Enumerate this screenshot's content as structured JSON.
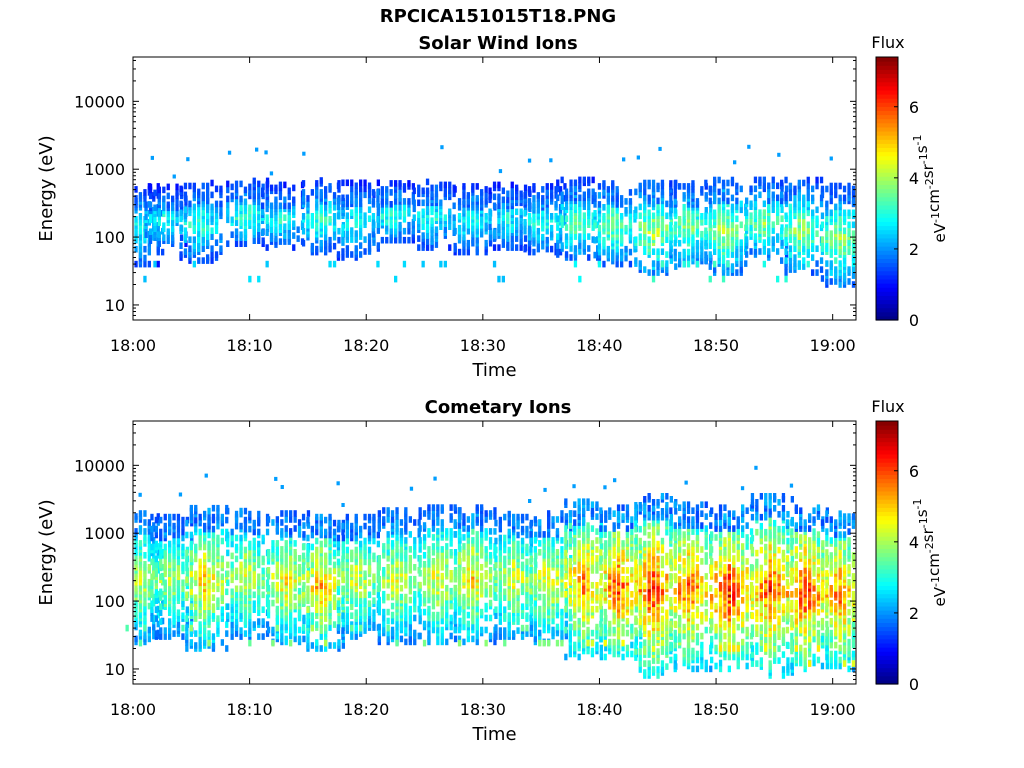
{
  "figure": {
    "supertitle": "RPCICA151015T18.PNG"
  },
  "chart_data": [
    {
      "type": "heatmap",
      "title": "Solar Wind Ions",
      "xlabel": "Time",
      "ylabel": "Energy (eV)",
      "x_ticks": [
        "18:00",
        "18:10",
        "18:20",
        "18:30",
        "18:40",
        "18:50",
        "19:00"
      ],
      "xlim": [
        "18:00",
        "19:02"
      ],
      "y_scale": "log",
      "y_ticks": [
        "10",
        "100",
        "1000",
        "10000"
      ],
      "ylim": [
        6,
        45000
      ],
      "colorbar": {
        "label": "Flux",
        "unit": "eV-1cm-2sr-1s-1",
        "ticks": [
          "0",
          "2",
          "4",
          "6"
        ],
        "range": [
          0,
          7.4
        ],
        "colormap": "jet"
      },
      "bursts": [
        {
          "t": "18:00.5",
          "lo": 40,
          "hi": 600,
          "peak": 3.3
        },
        {
          "t": "18:02.5",
          "lo": 80,
          "hi": 550,
          "peak": 3.4
        },
        {
          "t": "18:05.5",
          "lo": 45,
          "hi": 650,
          "peak": 3.6
        },
        {
          "t": "18:09.5",
          "lo": 80,
          "hi": 700,
          "peak": 3.7
        },
        {
          "t": "18:12.5",
          "lo": 70,
          "hi": 600,
          "peak": 3.4
        },
        {
          "t": "18:16.0",
          "lo": 60,
          "hi": 700,
          "peak": 3.6
        },
        {
          "t": "18:19.0",
          "lo": 50,
          "hi": 650,
          "peak": 3.4
        },
        {
          "t": "18:22.0",
          "lo": 90,
          "hi": 650,
          "peak": 3.6
        },
        {
          "t": "18:25.5",
          "lo": 70,
          "hi": 700,
          "peak": 3.4
        },
        {
          "t": "18:29.0",
          "lo": 60,
          "hi": 600,
          "peak": 3.4
        },
        {
          "t": "18:32.0",
          "lo": 70,
          "hi": 600,
          "peak": 3.3
        },
        {
          "t": "18:35.0",
          "lo": 60,
          "hi": 600,
          "peak": 3.5
        },
        {
          "t": "18:37.8",
          "lo": 50,
          "hi": 700,
          "peak": 4.0
        },
        {
          "t": "18:41.0",
          "lo": 40,
          "hi": 650,
          "peak": 4.1
        },
        {
          "t": "18:44.5",
          "lo": 30,
          "hi": 650,
          "peak": 4.6
        },
        {
          "t": "18:47.5",
          "lo": 40,
          "hi": 650,
          "peak": 4.3
        },
        {
          "t": "18:50.5",
          "lo": 30,
          "hi": 700,
          "peak": 4.6
        },
        {
          "t": "18:54.0",
          "lo": 50,
          "hi": 700,
          "peak": 4.2
        },
        {
          "t": "18:57.0",
          "lo": 30,
          "hi": 700,
          "peak": 4.4
        },
        {
          "t": "19:00.5",
          "lo": 20,
          "hi": 600,
          "peak": 4.4
        }
      ]
    },
    {
      "type": "heatmap",
      "title": "Cometary Ions",
      "xlabel": "Time",
      "ylabel": "Energy (eV)",
      "x_ticks": [
        "18:00",
        "18:10",
        "18:20",
        "18:30",
        "18:40",
        "18:50",
        "19:00"
      ],
      "xlim": [
        "18:00",
        "19:02"
      ],
      "y_scale": "log",
      "y_ticks": [
        "10",
        "100",
        "1000",
        "10000"
      ],
      "ylim": [
        6,
        45000
      ],
      "colorbar": {
        "label": "Flux",
        "unit": "eV-1cm-2sr-1s-1",
        "ticks": [
          "0",
          "2",
          "4",
          "6"
        ],
        "range": [
          0,
          7.4
        ],
        "colormap": "jet"
      },
      "bursts": [
        {
          "t": "18:00.5",
          "lo": 25,
          "hi": 2000,
          "peak": 4.8
        },
        {
          "t": "18:03.0",
          "lo": 30,
          "hi": 1800,
          "peak": 4.7
        },
        {
          "t": "18:06.0",
          "lo": 20,
          "hi": 2500,
          "peak": 5.5
        },
        {
          "t": "18:09.5",
          "lo": 30,
          "hi": 2200,
          "peak": 5.0
        },
        {
          "t": "18:13.0",
          "lo": 25,
          "hi": 2000,
          "peak": 5.3
        },
        {
          "t": "18:16.0",
          "lo": 20,
          "hi": 1800,
          "peak": 5.8
        },
        {
          "t": "18:19.0",
          "lo": 30,
          "hi": 1800,
          "peak": 5.0
        },
        {
          "t": "18:22.5",
          "lo": 25,
          "hi": 2200,
          "peak": 5.0
        },
        {
          "t": "18:26.0",
          "lo": 25,
          "hi": 2400,
          "peak": 5.2
        },
        {
          "t": "18:29.0",
          "lo": 25,
          "hi": 2500,
          "peak": 5.4
        },
        {
          "t": "18:32.5",
          "lo": 30,
          "hi": 2000,
          "peak": 5.1
        },
        {
          "t": "18:35.5",
          "lo": 25,
          "hi": 2000,
          "peak": 5.3
        },
        {
          "t": "18:38.5",
          "lo": 15,
          "hi": 3000,
          "peak": 6.2
        },
        {
          "t": "18:41.5",
          "lo": 15,
          "hi": 2500,
          "peak": 6.6
        },
        {
          "t": "18:44.5",
          "lo": 8,
          "hi": 3500,
          "peak": 6.8
        },
        {
          "t": "18:47.5",
          "lo": 10,
          "hi": 2800,
          "peak": 6.5
        },
        {
          "t": "18:51.0",
          "lo": 10,
          "hi": 2500,
          "peak": 6.9
        },
        {
          "t": "18:54.5",
          "lo": 8,
          "hi": 3500,
          "peak": 6.6
        },
        {
          "t": "18:57.5",
          "lo": 10,
          "hi": 2500,
          "peak": 6.8
        },
        {
          "t": "19:00.5",
          "lo": 10,
          "hi": 2000,
          "peak": 6.3
        }
      ]
    }
  ]
}
